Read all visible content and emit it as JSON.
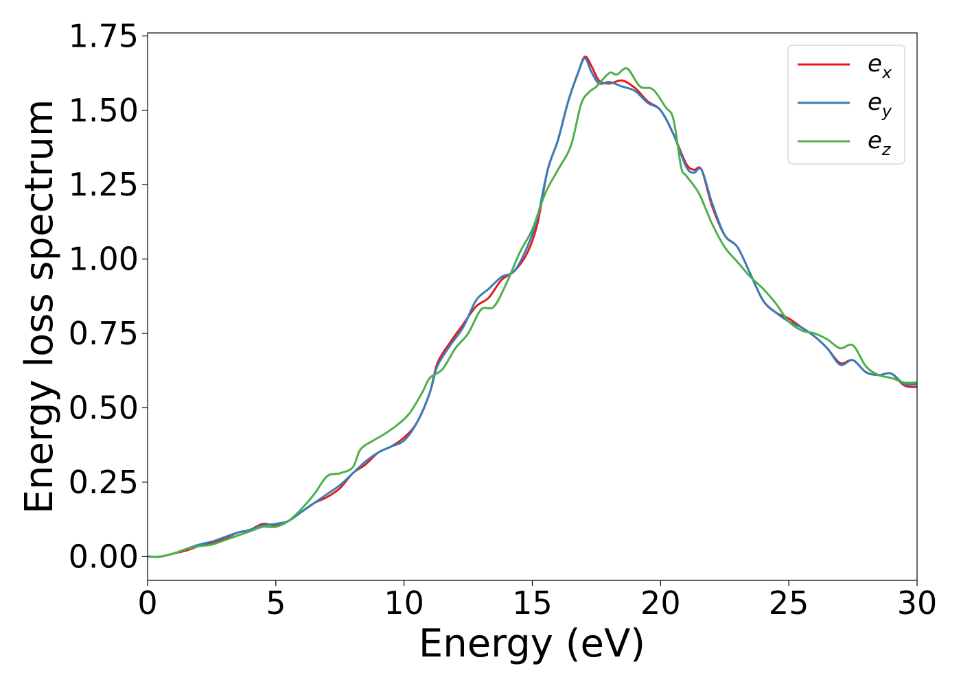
{
  "chart_data": {
    "type": "line",
    "xlabel": "Energy (eV)",
    "ylabel": "Energy loss spectrum",
    "xlim": [
      0,
      30
    ],
    "ylim": [
      -0.08,
      1.76
    ],
    "xticks": [
      0,
      5,
      10,
      15,
      20,
      25,
      30
    ],
    "xtick_labels": [
      "0",
      "5",
      "10",
      "15",
      "20",
      "25",
      "30"
    ],
    "yticks": [
      0.0,
      0.25,
      0.5,
      0.75,
      1.0,
      1.25,
      1.5,
      1.75
    ],
    "ytick_labels": [
      "0.00",
      "0.25",
      "0.50",
      "0.75",
      "1.00",
      "1.25",
      "1.50",
      "1.75"
    ],
    "grid": false,
    "legend_position": "top-right",
    "series": [
      {
        "name": "e",
        "subscript": "x",
        "color": "#e41a1c",
        "points": [
          [
            0,
            0
          ],
          [
            0.5,
            0
          ],
          [
            1,
            0.01
          ],
          [
            1.5,
            0.02
          ],
          [
            2,
            0.035
          ],
          [
            2.5,
            0.045
          ],
          [
            3,
            0.06
          ],
          [
            3.5,
            0.08
          ],
          [
            4,
            0.09
          ],
          [
            4.5,
            0.11
          ],
          [
            5,
            0.105
          ],
          [
            5.5,
            0.12
          ],
          [
            6,
            0.15
          ],
          [
            6.5,
            0.18
          ],
          [
            7,
            0.2
          ],
          [
            7.5,
            0.23
          ],
          [
            8,
            0.28
          ],
          [
            8.5,
            0.31
          ],
          [
            9,
            0.35
          ],
          [
            9.5,
            0.37
          ],
          [
            10,
            0.4
          ],
          [
            10.5,
            0.45
          ],
          [
            11,
            0.55
          ],
          [
            11.3,
            0.65
          ],
          [
            11.8,
            0.72
          ],
          [
            12.3,
            0.78
          ],
          [
            12.8,
            0.84
          ],
          [
            13.3,
            0.87
          ],
          [
            13.8,
            0.93
          ],
          [
            14.3,
            0.96
          ],
          [
            14.8,
            1.02
          ],
          [
            15.2,
            1.12
          ],
          [
            15.6,
            1.3
          ],
          [
            16,
            1.4
          ],
          [
            16.4,
            1.53
          ],
          [
            16.8,
            1.63
          ],
          [
            17.05,
            1.68
          ],
          [
            17.3,
            1.65
          ],
          [
            17.6,
            1.6
          ],
          [
            18,
            1.59
          ],
          [
            18.5,
            1.6
          ],
          [
            19,
            1.575
          ],
          [
            19.5,
            1.53
          ],
          [
            20,
            1.5
          ],
          [
            20.5,
            1.42
          ],
          [
            21,
            1.32
          ],
          [
            21.3,
            1.3
          ],
          [
            21.6,
            1.3
          ],
          [
            22,
            1.18
          ],
          [
            22.5,
            1.08
          ],
          [
            23,
            1.04
          ],
          [
            23.5,
            0.95
          ],
          [
            24,
            0.86
          ],
          [
            24.5,
            0.82
          ],
          [
            25,
            0.8
          ],
          [
            25.5,
            0.77
          ],
          [
            26,
            0.74
          ],
          [
            26.5,
            0.7
          ],
          [
            27,
            0.65
          ],
          [
            27.5,
            0.66
          ],
          [
            28,
            0.62
          ],
          [
            28.5,
            0.61
          ],
          [
            29,
            0.615
          ],
          [
            29.5,
            0.575
          ],
          [
            30,
            0.57
          ]
        ]
      },
      {
        "name": "e",
        "subscript": "y",
        "color": "#377eb8",
        "points": [
          [
            0,
            0
          ],
          [
            0.5,
            0
          ],
          [
            1,
            0.01
          ],
          [
            1.5,
            0.025
          ],
          [
            2,
            0.04
          ],
          [
            2.5,
            0.05
          ],
          [
            3,
            0.065
          ],
          [
            3.5,
            0.08
          ],
          [
            4,
            0.09
          ],
          [
            4.5,
            0.105
          ],
          [
            5,
            0.11
          ],
          [
            5.5,
            0.12
          ],
          [
            6,
            0.15
          ],
          [
            6.5,
            0.18
          ],
          [
            7,
            0.21
          ],
          [
            7.5,
            0.24
          ],
          [
            8,
            0.28
          ],
          [
            8.5,
            0.32
          ],
          [
            9,
            0.35
          ],
          [
            9.5,
            0.37
          ],
          [
            10,
            0.39
          ],
          [
            10.5,
            0.45
          ],
          [
            11,
            0.55
          ],
          [
            11.3,
            0.64
          ],
          [
            11.8,
            0.71
          ],
          [
            12.3,
            0.77
          ],
          [
            12.8,
            0.86
          ],
          [
            13.3,
            0.9
          ],
          [
            13.8,
            0.94
          ],
          [
            14.3,
            0.96
          ],
          [
            14.8,
            1.04
          ],
          [
            15.2,
            1.14
          ],
          [
            15.6,
            1.3
          ],
          [
            16,
            1.4
          ],
          [
            16.4,
            1.53
          ],
          [
            16.8,
            1.63
          ],
          [
            17.05,
            1.675
          ],
          [
            17.3,
            1.63
          ],
          [
            17.6,
            1.59
          ],
          [
            18,
            1.595
          ],
          [
            18.5,
            1.58
          ],
          [
            19,
            1.565
          ],
          [
            19.5,
            1.525
          ],
          [
            20,
            1.5
          ],
          [
            20.5,
            1.42
          ],
          [
            21,
            1.31
          ],
          [
            21.3,
            1.29
          ],
          [
            21.6,
            1.3
          ],
          [
            22,
            1.19
          ],
          [
            22.5,
            1.08
          ],
          [
            23,
            1.04
          ],
          [
            23.5,
            0.95
          ],
          [
            24,
            0.86
          ],
          [
            24.5,
            0.82
          ],
          [
            25,
            0.79
          ],
          [
            25.5,
            0.77
          ],
          [
            26,
            0.74
          ],
          [
            26.5,
            0.7
          ],
          [
            27,
            0.645
          ],
          [
            27.5,
            0.66
          ],
          [
            28,
            0.62
          ],
          [
            28.5,
            0.61
          ],
          [
            29,
            0.615
          ],
          [
            29.5,
            0.58
          ],
          [
            30,
            0.58
          ]
        ]
      },
      {
        "name": "e",
        "subscript": "z",
        "color": "#4daf4a",
        "points": [
          [
            0,
            0
          ],
          [
            0.5,
            0
          ],
          [
            1,
            0.01
          ],
          [
            1.5,
            0.025
          ],
          [
            2,
            0.035
          ],
          [
            2.5,
            0.04
          ],
          [
            3,
            0.055
          ],
          [
            3.5,
            0.07
          ],
          [
            4,
            0.085
          ],
          [
            4.5,
            0.1
          ],
          [
            5,
            0.1
          ],
          [
            5.5,
            0.12
          ],
          [
            6,
            0.16
          ],
          [
            6.5,
            0.21
          ],
          [
            7,
            0.27
          ],
          [
            7.5,
            0.28
          ],
          [
            8,
            0.3
          ],
          [
            8.3,
            0.36
          ],
          [
            8.8,
            0.39
          ],
          [
            9.2,
            0.41
          ],
          [
            9.7,
            0.44
          ],
          [
            10.2,
            0.48
          ],
          [
            10.7,
            0.55
          ],
          [
            11,
            0.6
          ],
          [
            11.5,
            0.63
          ],
          [
            12,
            0.7
          ],
          [
            12.5,
            0.75
          ],
          [
            13,
            0.83
          ],
          [
            13.5,
            0.84
          ],
          [
            14,
            0.92
          ],
          [
            14.5,
            1.02
          ],
          [
            15,
            1.1
          ],
          [
            15.5,
            1.22
          ],
          [
            16,
            1.3
          ],
          [
            16.5,
            1.38
          ],
          [
            16.9,
            1.52
          ],
          [
            17.2,
            1.56
          ],
          [
            17.5,
            1.58
          ],
          [
            18,
            1.625
          ],
          [
            18.3,
            1.62
          ],
          [
            18.7,
            1.64
          ],
          [
            19.2,
            1.58
          ],
          [
            19.7,
            1.57
          ],
          [
            20.2,
            1.51
          ],
          [
            20.5,
            1.47
          ],
          [
            20.8,
            1.31
          ],
          [
            21,
            1.28
          ],
          [
            21.5,
            1.22
          ],
          [
            22,
            1.12
          ],
          [
            22.5,
            1.04
          ],
          [
            23,
            0.99
          ],
          [
            23.5,
            0.94
          ],
          [
            24,
            0.9
          ],
          [
            24.5,
            0.85
          ],
          [
            25,
            0.79
          ],
          [
            25.5,
            0.76
          ],
          [
            26,
            0.75
          ],
          [
            26.5,
            0.73
          ],
          [
            27,
            0.7
          ],
          [
            27.5,
            0.71
          ],
          [
            28,
            0.64
          ],
          [
            28.5,
            0.61
          ],
          [
            29,
            0.6
          ],
          [
            29.5,
            0.585
          ],
          [
            30,
            0.585
          ]
        ]
      }
    ]
  }
}
